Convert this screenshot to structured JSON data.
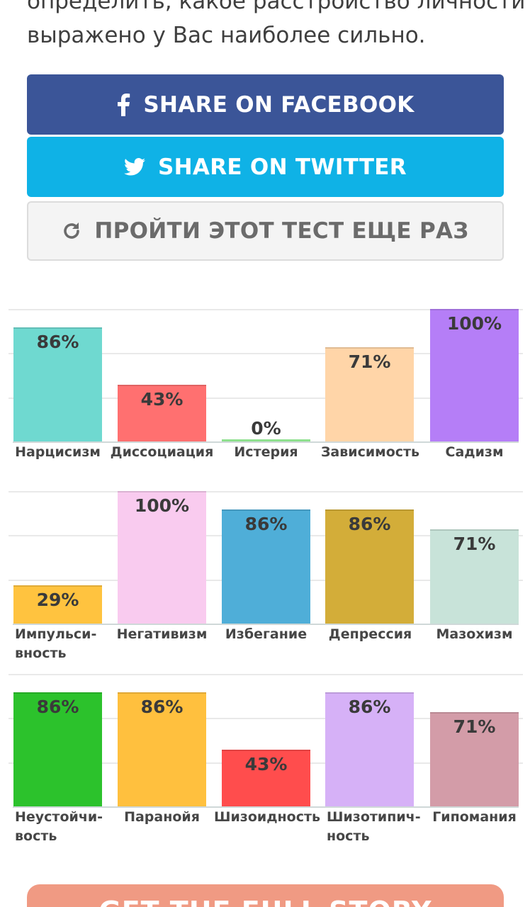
{
  "intro": {
    "line1": "определить, какое расстройство личности",
    "line2": "выражено у Вас наиболее сильно."
  },
  "buttons": {
    "facebook": "SHARE ON FACEBOOK",
    "twitter": "SHARE ON TWITTER",
    "retry": "ПРОЙТИ ЭТОТ ТЕСТ ЕЩЕ РАЗ"
  },
  "icons": {
    "facebook": "facebook-icon",
    "twitter": "twitter-icon",
    "retry": "refresh-icon"
  },
  "chart_data": [
    {
      "type": "bar",
      "ylim": [
        0,
        100
      ],
      "categories": [
        "Нарцисизм",
        "Диссоциация",
        "Истерия",
        "Зависимость",
        "Садизм"
      ],
      "values": [
        86,
        43,
        0,
        71,
        100
      ],
      "labels": [
        "86%",
        "43%",
        "0%",
        "71%",
        "100%"
      ],
      "colors": [
        "#6fd9d0",
        "#ff7070",
        "#8ee08e",
        "#ffd5a8",
        "#b57ef7"
      ]
    },
    {
      "type": "bar",
      "ylim": [
        0,
        100
      ],
      "categories": [
        "Импульси-\nвность",
        "Негативизм",
        "Избегание",
        "Депрессия",
        "Мазохизм"
      ],
      "values": [
        29,
        100,
        86,
        86,
        71
      ],
      "labels": [
        "29%",
        "100%",
        "86%",
        "86%",
        "71%"
      ],
      "colors": [
        "#ffc33f",
        "#f9cbef",
        "#4faed8",
        "#d3ad39",
        "#c8e3d9"
      ]
    },
    {
      "type": "bar",
      "ylim": [
        0,
        100
      ],
      "categories": [
        "Неустойчи-\nвость",
        "Паранойя",
        "Шизоидность",
        "Шизотипич-\nность",
        "Гипомания"
      ],
      "values": [
        86,
        86,
        43,
        86,
        71
      ],
      "labels": [
        "86%",
        "86%",
        "43%",
        "86%",
        "71%"
      ],
      "colors": [
        "#2cc22c",
        "#ffc03e",
        "#ff4d4d",
        "#d6b1f7",
        "#d39ca8"
      ]
    }
  ],
  "cta": {
    "label": "GET THE FULL STORY"
  }
}
